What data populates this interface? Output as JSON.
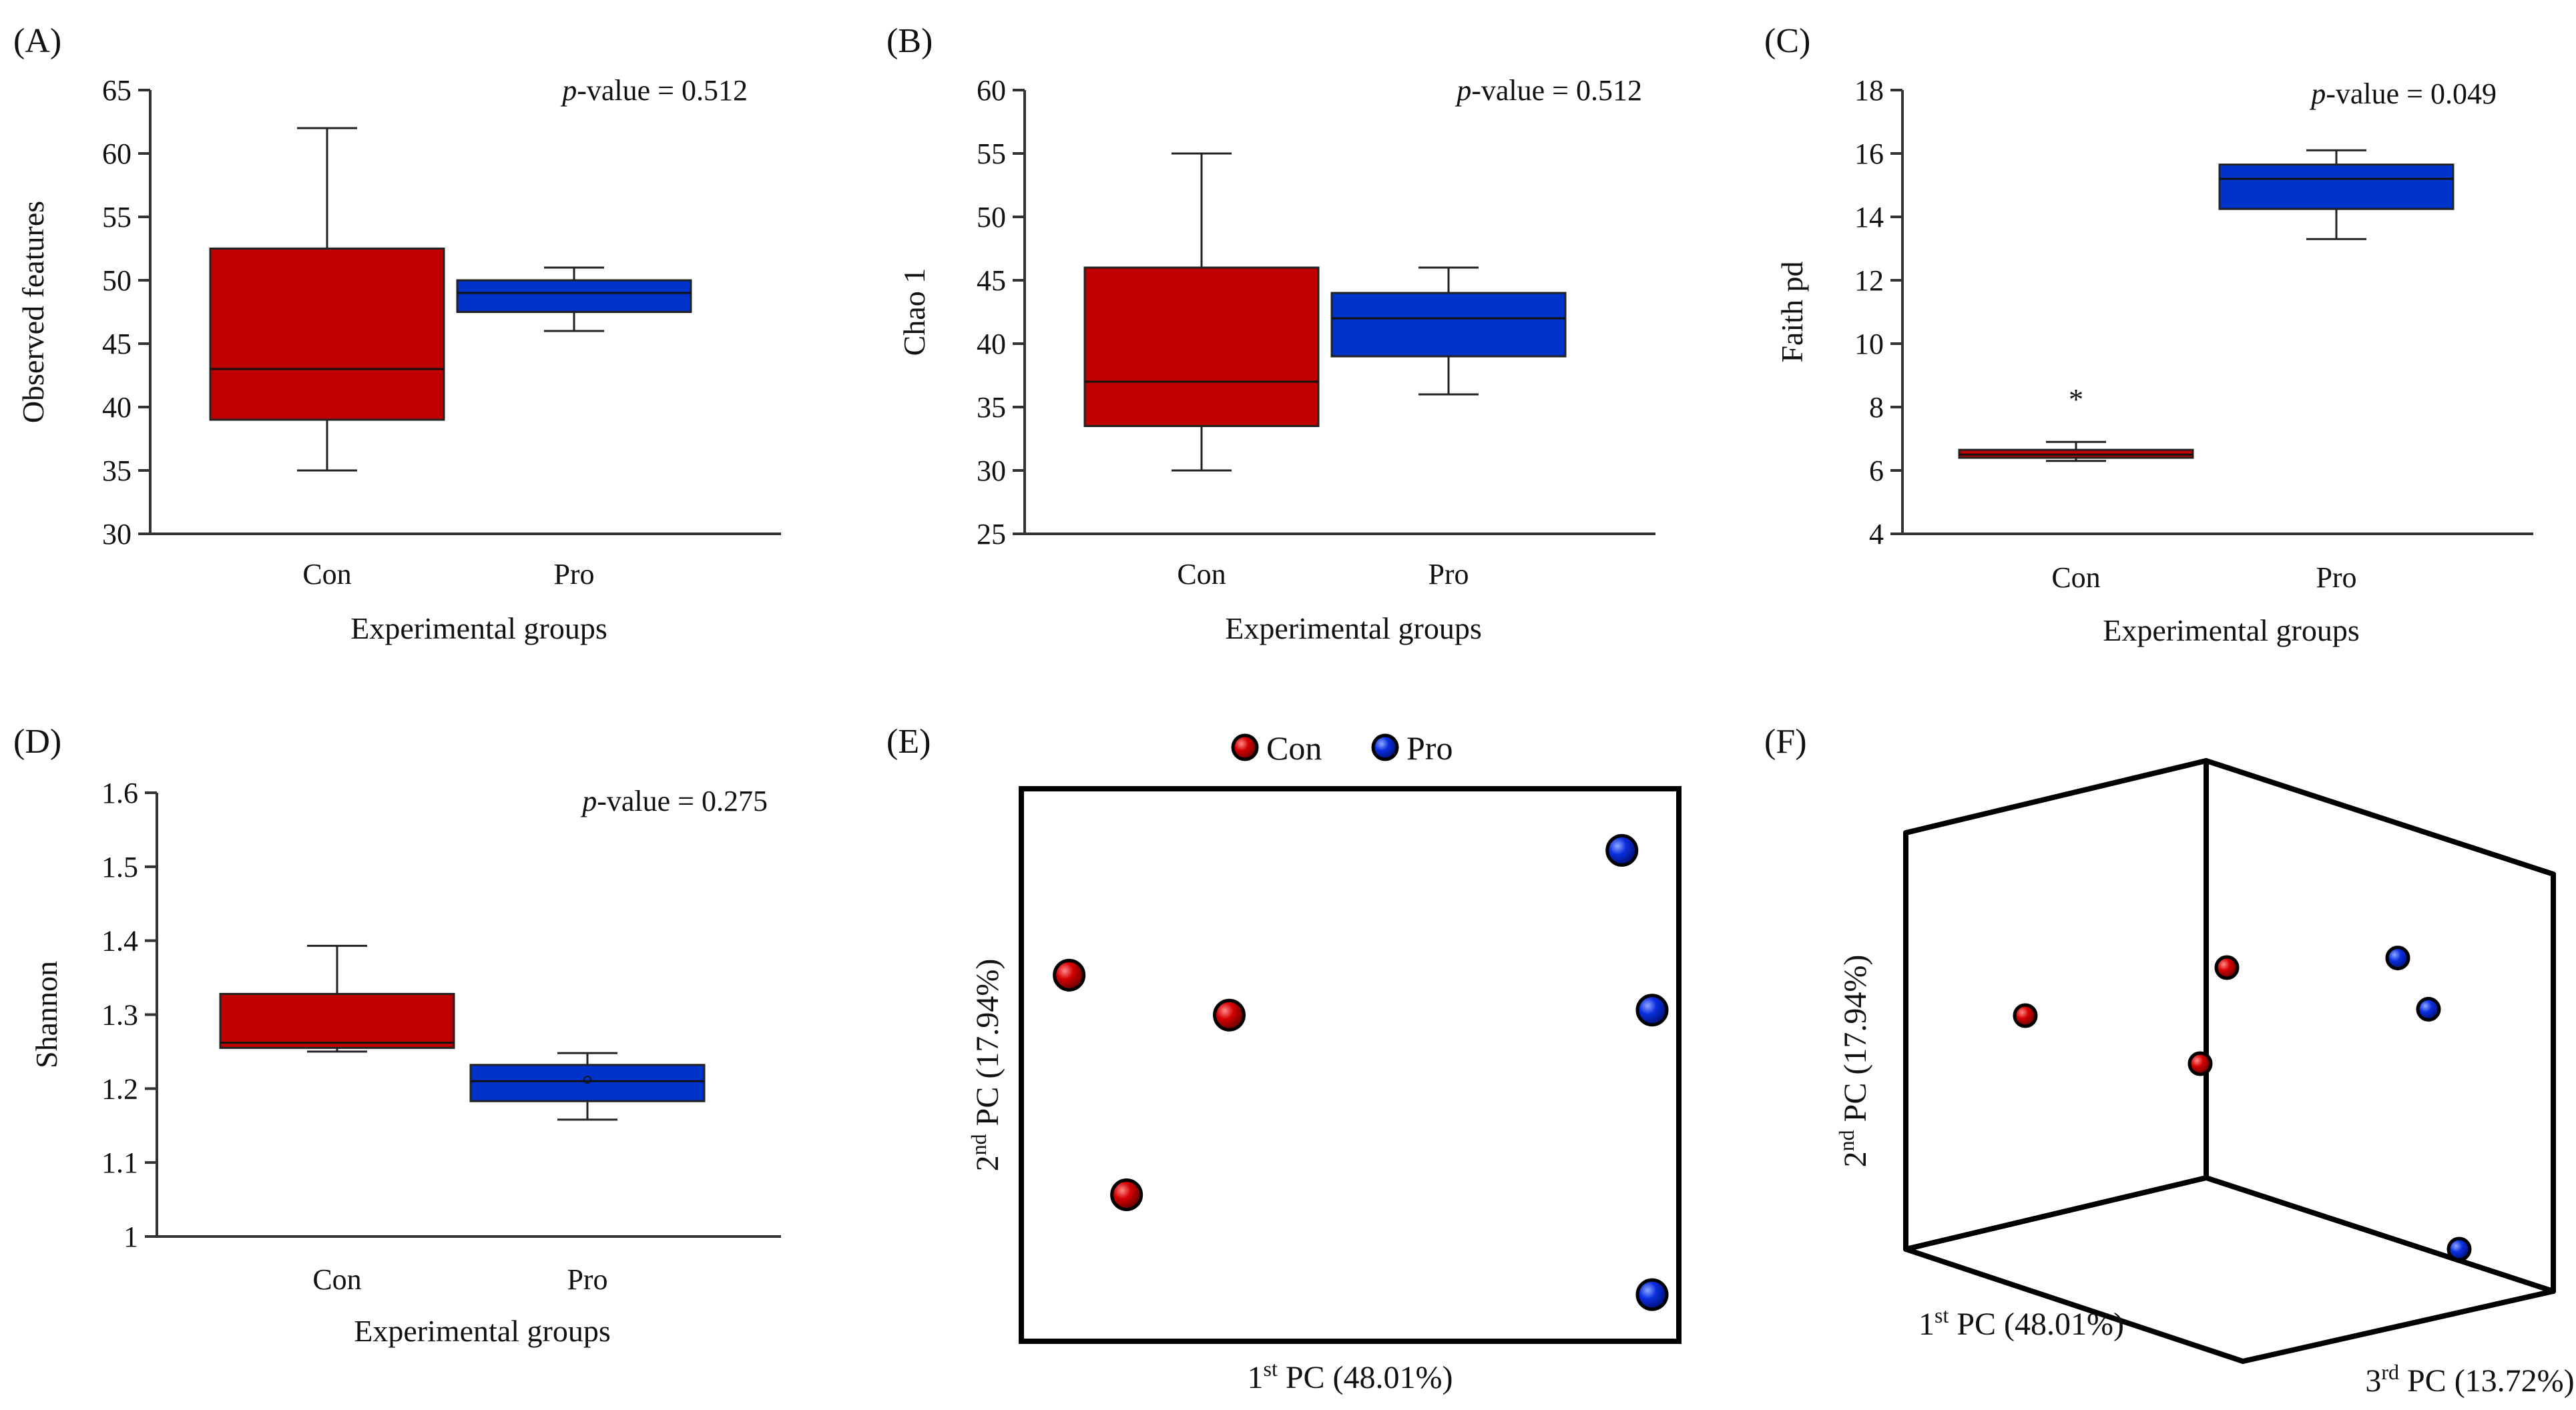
{
  "colors": {
    "con": "#c00000",
    "pro": "#0033cc",
    "axis": "#333333",
    "frame": "#000000"
  },
  "panels": [
    {
      "id": "A",
      "label": "(A)",
      "chart_data": {
        "type": "box",
        "ylabel": "Observed features",
        "xlabel": "Experimental groups",
        "ylim": [
          30,
          65
        ],
        "yticks": [
          30,
          35,
          40,
          45,
          50,
          55,
          60,
          65
        ],
        "annotation": {
          "italic": "p",
          "text": "-value = 0.512"
        },
        "categories": [
          "Con",
          "Pro"
        ],
        "boxes": [
          {
            "group": "Con",
            "min": 35,
            "q1": 39,
            "median": 43,
            "q3": 52.5,
            "max": 62
          },
          {
            "group": "Pro",
            "min": 46,
            "q1": 47.5,
            "median": 49,
            "q3": 50,
            "max": 51
          }
        ]
      }
    },
    {
      "id": "B",
      "label": "(B)",
      "chart_data": {
        "type": "box",
        "ylabel": "Chao 1",
        "xlabel": "Experimental groups",
        "ylim": [
          25,
          60
        ],
        "yticks": [
          25,
          30,
          35,
          40,
          45,
          50,
          55,
          60
        ],
        "annotation": {
          "italic": "p",
          "text": "-value = 0.512"
        },
        "categories": [
          "Con",
          "Pro"
        ],
        "boxes": [
          {
            "group": "Con",
            "min": 30,
            "q1": 33.5,
            "median": 37,
            "q3": 46,
            "max": 55
          },
          {
            "group": "Pro",
            "min": 36,
            "q1": 39,
            "median": 42,
            "q3": 44,
            "max": 46
          }
        ]
      }
    },
    {
      "id": "C",
      "label": "(C)",
      "chart_data": {
        "type": "box",
        "ylabel": "Faith pd",
        "xlabel": "Experimental groups",
        "ylim": [
          4,
          18
        ],
        "yticks": [
          4,
          6,
          8,
          10,
          12,
          14,
          16,
          18
        ],
        "annotation": {
          "italic": "p",
          "text": "-value = 0.049"
        },
        "categories": [
          "Con",
          "Pro"
        ],
        "outlier_marker": "*",
        "boxes": [
          {
            "group": "Con",
            "min": 6.3,
            "q1": 6.4,
            "median": 6.5,
            "q3": 6.65,
            "max": 6.9,
            "star": 8.4
          },
          {
            "group": "Pro",
            "min": 13.3,
            "q1": 14.25,
            "median": 15.2,
            "q3": 15.65,
            "max": 16.1
          }
        ]
      }
    },
    {
      "id": "D",
      "label": "(D)",
      "chart_data": {
        "type": "box",
        "ylabel": "Shannon",
        "xlabel": "Experimental groups",
        "ylim": [
          1,
          1.6
        ],
        "yticks": [
          "1",
          "1.1",
          "1.2",
          "1.3",
          "1.4",
          "1.5",
          "1.6"
        ],
        "annotation": {
          "italic": "p",
          "text": "-value = 0.275"
        },
        "categories": [
          "Con",
          "Pro"
        ],
        "boxes": [
          {
            "group": "Con",
            "min": 1.25,
            "q1": 1.255,
            "median": 1.262,
            "q3": 1.328,
            "max": 1.393
          },
          {
            "group": "Pro",
            "min": 1.158,
            "q1": 1.183,
            "median": 1.21,
            "q3": 1.232,
            "max": 1.248,
            "mean": 1.212
          }
        ]
      }
    },
    {
      "id": "E",
      "label": "(E)",
      "chart_data": {
        "type": "scatter",
        "xlabel": {
          "pre": "1",
          "sup": "st",
          "post": " PC (48.01%)"
        },
        "ylabel": {
          "pre": "2",
          "sup": "nd",
          "post": " PC (17.94%)"
        },
        "legend": [
          {
            "name": "Con",
            "color_key": "con"
          },
          {
            "name": "Pro",
            "color_key": "pro"
          }
        ],
        "xlim": [
          0,
          1
        ],
        "ylim": [
          0,
          1
        ],
        "series": [
          {
            "name": "Con",
            "points": [
              {
                "x": 0.035,
                "y": 0.68
              },
              {
                "x": 0.3,
                "y": 0.6
              },
              {
                "x": 0.13,
                "y": 0.24
              }
            ]
          },
          {
            "name": "Pro",
            "points": [
              {
                "x": 0.95,
                "y": 0.93
              },
              {
                "x": 1.0,
                "y": 0.61
              },
              {
                "x": 1.0,
                "y": 0.04
              }
            ]
          }
        ]
      }
    },
    {
      "id": "F",
      "label": "(F)",
      "chart_data": {
        "type": "scatter3d",
        "xlabel": {
          "pre": "1",
          "sup": "st",
          "post": " PC (48.01%)"
        },
        "ylabel": {
          "pre": "2",
          "sup": "nd",
          "post": " PC (17.94%)"
        },
        "zlabel": {
          "pre": "3",
          "sup": "rd",
          "post": " PC (13.72%)"
        },
        "series": [
          {
            "name": "Con",
            "points": [
              {
                "x": 0.15,
                "y": 0.6,
                "z": 0.2
              },
              {
                "x": 0.5,
                "y": 0.75,
                "z": 0.4
              },
              {
                "x": 0.45,
                "y": 0.45,
                "z": 0.45
              }
            ]
          },
          {
            "name": "Pro",
            "points": [
              {
                "x": 0.8,
                "y": 0.78,
                "z": 0.5
              },
              {
                "x": 0.85,
                "y": 0.62,
                "z": 0.6
              },
              {
                "x": 0.9,
                "y": 0.1,
                "z": 0.7
              }
            ]
          }
        ]
      }
    }
  ]
}
